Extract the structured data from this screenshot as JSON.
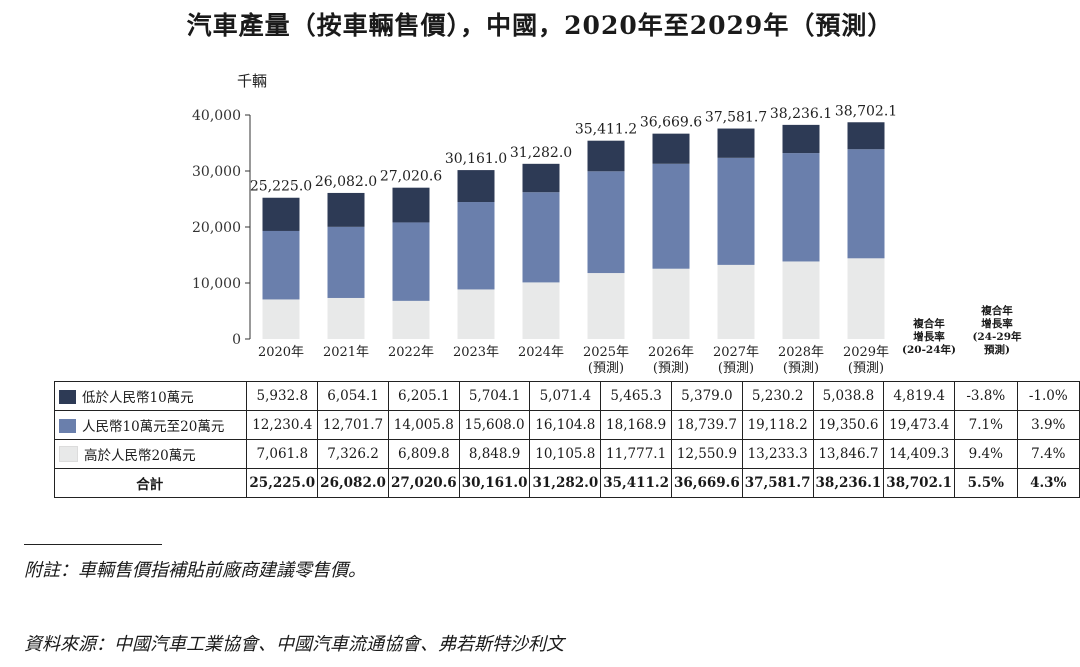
{
  "title": "汽車產量（按車輛售價），中國，2020年至2029年（預測）",
  "unit_label": "千輛",
  "colors": {
    "low": "#2d3a55",
    "mid": "#6a7fac",
    "high": "#e8e9e9"
  },
  "chart_data": {
    "type": "bar",
    "stacked": true,
    "title": "汽車產量（按車輛售價），中國，2020年至2029年（預測）",
    "ylabel": "千輛",
    "ylim": [
      0,
      40000
    ],
    "yticks": [
      "0",
      "10,000",
      "20,000",
      "30,000",
      "40,000"
    ],
    "ytick_values": [
      0,
      10000,
      20000,
      30000,
      40000
    ],
    "categories": [
      "2020年",
      "2021年",
      "2022年",
      "2023年",
      "2024年",
      "2025年",
      "2026年",
      "2027年",
      "2028年",
      "2029年"
    ],
    "category_sub": [
      "",
      "",
      "",
      "",
      "",
      "(預測)",
      "(預測)",
      "(預測)",
      "(預測)",
      "(預測)"
    ],
    "series": [
      {
        "name": "高於人民幣20萬元",
        "key": "high",
        "values": [
          7061.8,
          7326.2,
          6809.8,
          8848.9,
          10105.8,
          11777.1,
          12550.9,
          13233.3,
          13846.7,
          14409.3
        ],
        "labels": [
          "7,061.8",
          "7,326.2",
          "6,809.8",
          "8,848.9",
          "10,105.8",
          "11,777.1",
          "12,550.9",
          "13,233.3",
          "13,846.7",
          "14,409.3"
        ],
        "cagr_20_24": "9.4%",
        "cagr_24_29": "7.4%"
      },
      {
        "name": "人民幣10萬元至20萬元",
        "key": "mid",
        "values": [
          12230.4,
          12701.7,
          14005.8,
          15608.0,
          16104.8,
          18168.9,
          18739.7,
          19118.2,
          19350.6,
          19473.4
        ],
        "labels": [
          "12,230.4",
          "12,701.7",
          "14,005.8",
          "15,608.0",
          "16,104.8",
          "18,168.9",
          "18,739.7",
          "19,118.2",
          "19,350.6",
          "19,473.4"
        ],
        "cagr_20_24": "7.1%",
        "cagr_24_29": "3.9%"
      },
      {
        "name": "低於人民幣10萬元",
        "key": "low",
        "values": [
          5932.8,
          6054.1,
          6205.1,
          5704.1,
          5071.4,
          5465.3,
          5379.0,
          5230.2,
          5038.8,
          4819.4
        ],
        "labels": [
          "5,932.8",
          "6,054.1",
          "6,205.1",
          "5,704.1",
          "5,071.4",
          "5,465.3",
          "5,379.0",
          "5,230.2",
          "5,038.8",
          "4,819.4"
        ],
        "cagr_20_24": "-3.8%",
        "cagr_24_29": "-1.0%"
      }
    ],
    "totals": [
      25225.0,
      26082.0,
      27020.6,
      30161.0,
      31282.0,
      35411.2,
      36669.6,
      37581.7,
      38236.1,
      38702.1
    ],
    "total_labels": [
      "25,225.0",
      "26,082.0",
      "27,020.6",
      "30,161.0",
      "31,282.0",
      "35,411.2",
      "36,669.6",
      "37,581.7",
      "38,236.1",
      "38,702.1"
    ],
    "total_cagr_20_24": "5.5%",
    "total_cagr_24_29": "4.3%"
  },
  "cagr_heads": {
    "h1": [
      "複合年",
      "增長率",
      "(20-24年)"
    ],
    "h2": [
      "複合年",
      "增長率",
      "(24-29年",
      "預測)"
    ]
  },
  "table": {
    "total_label": "合計"
  },
  "footnote": "附註：車輛售價指補貼前廠商建議零售價。",
  "source": "資料來源：中國汽車工業協會、中國汽車流通協會、弗若斯特沙利文"
}
